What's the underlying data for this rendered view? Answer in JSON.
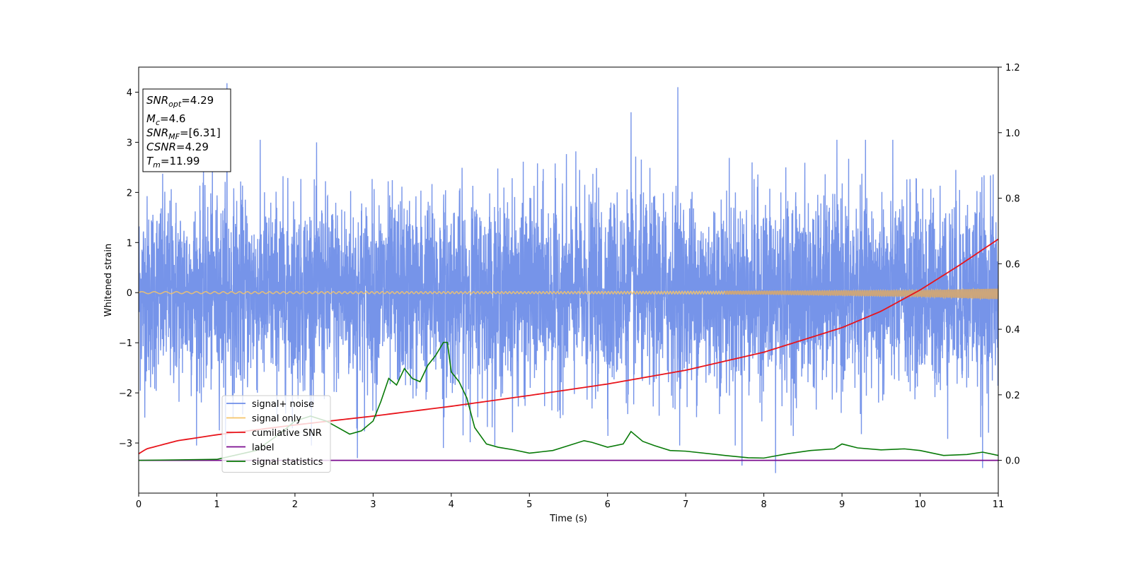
{
  "chart_data": {
    "type": "line",
    "title": "",
    "xlabel": "Time (s)",
    "ylabel": "Whitened strain",
    "y2label": "",
    "xlim": [
      0,
      11
    ],
    "ylim": [
      -4,
      4.5
    ],
    "y2lim": [
      -0.1,
      1.2
    ],
    "x_ticks": [
      0,
      1,
      2,
      3,
      4,
      5,
      6,
      7,
      8,
      9,
      10,
      11
    ],
    "y_ticks": [
      -3,
      -2,
      -1,
      0,
      1,
      2,
      3,
      4
    ],
    "y2_ticks": [
      0.0,
      0.2,
      0.4,
      0.6,
      0.8,
      1.0,
      1.2
    ],
    "x_tick_labels": [
      "0",
      "1",
      "2",
      "3",
      "4",
      "5",
      "6",
      "7",
      "8",
      "9",
      "10",
      "11"
    ],
    "y_tick_labels": [
      "−3",
      "−2",
      "−1",
      "0",
      "1",
      "2",
      "3",
      "4"
    ],
    "y2_tick_labels": [
      "0.0",
      "0.2",
      "0.4",
      "0.6",
      "0.8",
      "1.0",
      "1.2"
    ],
    "grid": false,
    "legend_position": "lower-left",
    "info_box": {
      "position": "top-left",
      "lines": [
        {
          "sym": "SNR",
          "sub": "opt",
          "val": "=4.29"
        },
        {
          "sym": "M",
          "sub": "c",
          "val": "=4.6"
        },
        {
          "sym": "SNR",
          "sub": "MF",
          "val": "=[6.31]"
        },
        {
          "sym": "CSNR",
          "sub": "",
          "val": "=4.29"
        },
        {
          "sym": "T",
          "sub": "m",
          "val": "=11.99"
        }
      ]
    },
    "series": [
      {
        "name": "signal+ noise",
        "axis": "left",
        "color": "#6f8ee8",
        "description_kind": "noise",
        "typical_range": [
          -2.3,
          2.3
        ],
        "spikes": [
          [
            1.13,
            4.18
          ],
          [
            6.9,
            4.1
          ],
          [
            6.3,
            3.6
          ],
          [
            3.9,
            -3.1
          ],
          [
            8.15,
            -3.6
          ],
          [
            10.8,
            -3.5
          ],
          [
            7.72,
            -3.45
          ],
          [
            2.8,
            -3.3
          ]
        ]
      },
      {
        "name": "signal only",
        "axis": "left",
        "color": "#f5c46a",
        "envelope": {
          "x": [
            0,
            5,
            8,
            10,
            11
          ],
          "amp": [
            0.02,
            0.02,
            0.03,
            0.06,
            0.1
          ]
        }
      },
      {
        "name": "cumilative SNR",
        "axis": "right",
        "color": "#e8141b",
        "x": [
          0,
          0.1,
          0.5,
          1,
          2,
          3,
          4,
          5,
          6,
          7,
          8,
          9,
          9.5,
          10,
          10.5,
          11
        ],
        "y": [
          0.02,
          0.035,
          0.06,
          0.078,
          0.108,
          0.135,
          0.165,
          0.198,
          0.233,
          0.275,
          0.33,
          0.405,
          0.455,
          0.52,
          0.595,
          0.675
        ]
      },
      {
        "name": "label",
        "axis": "right",
        "color": "#7b0c8f",
        "x": [
          0,
          11
        ],
        "y": [
          0.0,
          0.0
        ]
      },
      {
        "name": "signal statistics",
        "axis": "right",
        "color": "#087a08",
        "x": [
          0,
          1,
          1.5,
          1.8,
          2.0,
          2.2,
          2.4,
          2.55,
          2.7,
          2.85,
          3.0,
          3.1,
          3.2,
          3.3,
          3.4,
          3.5,
          3.6,
          3.7,
          3.8,
          3.9,
          3.95,
          4.0,
          4.1,
          4.2,
          4.3,
          4.45,
          4.6,
          4.8,
          5.0,
          5.3,
          5.5,
          5.7,
          5.8,
          6.0,
          6.2,
          6.3,
          6.45,
          6.6,
          6.8,
          7.0,
          7.5,
          7.8,
          8.0,
          8.3,
          8.6,
          8.9,
          9.0,
          9.2,
          9.5,
          9.8,
          10.0,
          10.3,
          10.6,
          10.8,
          11.0
        ],
        "y": [
          0.0,
          0.003,
          0.03,
          0.08,
          0.12,
          0.135,
          0.12,
          0.1,
          0.08,
          0.09,
          0.12,
          0.18,
          0.25,
          0.23,
          0.28,
          0.25,
          0.24,
          0.29,
          0.32,
          0.36,
          0.36,
          0.27,
          0.24,
          0.19,
          0.1,
          0.05,
          0.04,
          0.032,
          0.022,
          0.03,
          0.045,
          0.06,
          0.055,
          0.04,
          0.05,
          0.088,
          0.058,
          0.045,
          0.03,
          0.028,
          0.015,
          0.008,
          0.007,
          0.02,
          0.03,
          0.035,
          0.05,
          0.038,
          0.032,
          0.035,
          0.03,
          0.015,
          0.018,
          0.025,
          0.015
        ]
      }
    ]
  }
}
